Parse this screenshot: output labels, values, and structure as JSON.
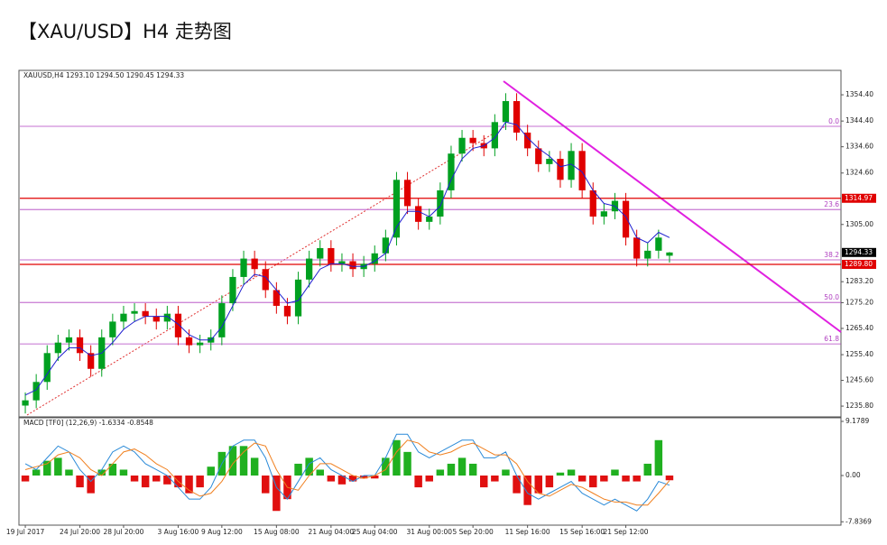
{
  "title": "【XAU/USD】H4 走势图",
  "chart_data": [
    {
      "type": "candlestick",
      "title": "XAUUSD,H4  1293.10 1294.50 1290.45 1294.33",
      "categories": [
        "19 Jul 2017",
        null,
        null,
        null,
        null,
        "24 Jul 20:00",
        null,
        null,
        null,
        "28 Jul 20:00",
        null,
        null,
        null,
        null,
        "3 Aug 16:00",
        null,
        null,
        null,
        "9 Aug 12:00",
        null,
        null,
        null,
        null,
        "15 Aug 08:00",
        null,
        null,
        null,
        null,
        "21 Aug 04:00",
        null,
        null,
        null,
        "25 Aug 04:00",
        null,
        null,
        null,
        null,
        "31 Aug 00:00",
        null,
        null,
        null,
        "5 Sep 20:00",
        null,
        null,
        null,
        null,
        "11 Sep 16:00",
        null,
        null,
        null,
        null,
        "15 Sep 16:00",
        null,
        null,
        null,
        "21 Sep 12:00",
        null,
        null,
        null,
        null
      ],
      "open": [
        1236,
        1238,
        1245,
        1256,
        1260,
        1262,
        1256,
        1250,
        1262,
        1268,
        1271,
        1272,
        1270,
        1268,
        1271,
        1262,
        1259,
        1260,
        1262,
        1275,
        1285,
        1292,
        1288,
        1280,
        1274,
        1270,
        1284,
        1292,
        1296,
        1290,
        1291,
        1288,
        1290,
        1294,
        1300,
        1322,
        1312,
        1306,
        1308,
        1318,
        1332,
        1338,
        1336,
        1334,
        1344,
        1352,
        1340,
        1334,
        1328,
        1330,
        1322,
        1333,
        1318,
        1308,
        1310,
        1314,
        1300,
        1292,
        1295,
        1293.1
      ],
      "high": [
        1241,
        1248,
        1259,
        1263,
        1265,
        1265,
        1259,
        1265,
        1271,
        1274,
        1275,
        1275,
        1273,
        1274,
        1274,
        1265,
        1263,
        1265,
        1278,
        1288,
        1295,
        1295,
        1291,
        1283,
        1277,
        1287,
        1295,
        1299,
        1299,
        1294,
        1294,
        1293,
        1297,
        1303,
        1325,
        1325,
        1315,
        1311,
        1321,
        1335,
        1341,
        1341,
        1339,
        1347,
        1355,
        1355,
        1343,
        1337,
        1333,
        1333,
        1336,
        1336,
        1321,
        1313,
        1317,
        1317,
        1303,
        1298,
        1303,
        1294.5
      ],
      "low": [
        1233,
        1235,
        1242,
        1253,
        1257,
        1253,
        1247,
        1247,
        1259,
        1265,
        1268,
        1267,
        1265,
        1265,
        1259,
        1256,
        1256,
        1257,
        1259,
        1272,
        1282,
        1285,
        1277,
        1271,
        1267,
        1267,
        1281,
        1289,
        1287,
        1287,
        1285,
        1285,
        1287,
        1291,
        1297,
        1309,
        1303,
        1303,
        1305,
        1315,
        1329,
        1333,
        1331,
        1331,
        1341,
        1337,
        1331,
        1325,
        1325,
        1319,
        1319,
        1315,
        1305,
        1305,
        1307,
        1297,
        1289,
        1289,
        1292,
        1290.45
      ],
      "close": [
        1238,
        1245,
        1256,
        1260,
        1262,
        1256,
        1250,
        1262,
        1268,
        1271,
        1272,
        1270,
        1268,
        1271,
        1262,
        1259,
        1260,
        1262,
        1275,
        1285,
        1292,
        1288,
        1280,
        1274,
        1270,
        1284,
        1292,
        1296,
        1290,
        1291,
        1288,
        1290,
        1294,
        1300,
        1322,
        1312,
        1306,
        1308,
        1318,
        1332,
        1338,
        1336,
        1334,
        1344,
        1352,
        1340,
        1334,
        1328,
        1330,
        1322,
        1333,
        1318,
        1308,
        1310,
        1314,
        1300,
        1292,
        1295,
        1300,
        1294.33
      ],
      "up_color": "#00a020",
      "down_color": "#e00000",
      "ma": {
        "color": "#2020d0",
        "values": [
          1240,
          1242,
          1248,
          1254,
          1258,
          1258,
          1255,
          1256,
          1260,
          1265,
          1268,
          1270,
          1270,
          1270,
          1267,
          1263,
          1261,
          1261,
          1266,
          1274,
          1282,
          1286,
          1285,
          1280,
          1275,
          1276,
          1282,
          1288,
          1290,
          1290,
          1289,
          1289,
          1291,
          1294,
          1304,
          1310,
          1310,
          1308,
          1312,
          1322,
          1330,
          1334,
          1335,
          1338,
          1344,
          1343,
          1338,
          1334,
          1331,
          1327,
          1328,
          1325,
          1318,
          1313,
          1312,
          1308,
          1300,
          1298,
          1302,
          1300
        ]
      },
      "ylim": [
        1231.7,
        1363.7
      ],
      "yticks": [
        {
          "value": 1354.4,
          "label": "1354.40"
        },
        {
          "value": 1344.4,
          "label": "1344.40"
        },
        {
          "value": 1334.6,
          "label": "1334.60"
        },
        {
          "value": 1324.6,
          "label": "1324.60"
        },
        {
          "value": 1305,
          "label": "1305.00"
        },
        {
          "value": 1283.2,
          "label": "1283.20"
        },
        {
          "value": 1275.2,
          "label": "1275.20"
        },
        {
          "value": 1265.4,
          "label": "1265.40"
        },
        {
          "value": 1255.4,
          "label": "1255.40"
        },
        {
          "value": 1245.6,
          "label": "1245.60"
        },
        {
          "value": 1235.8,
          "label": "1235.80"
        }
      ],
      "price_tags": [
        {
          "value": 1314.97,
          "color": "#e00000",
          "line": true
        },
        {
          "value": 1294.33,
          "color": "#000000",
          "line": false
        },
        {
          "value": 1289.8,
          "label": "1289.80",
          "color": "#e00000",
          "line": true
        }
      ],
      "fib_color": "#b040c0",
      "fib_levels": [
        {
          "value": 1342.4,
          "label": "0.0"
        },
        {
          "value": 1310.7,
          "label": "23.6"
        },
        {
          "value": 1291.5,
          "label": "38.2"
        },
        {
          "value": 1275.3,
          "label": "50.0"
        },
        {
          "value": 1259.5,
          "label": "61.8"
        }
      ]
    },
    {
      "type": "macd",
      "title": "MACD [TF0] (12,26,9) -1.6334 -0.8548",
      "histogram": {
        "up_color": "#20b020",
        "down_color": "#e01010",
        "values": [
          -1,
          1,
          2.5,
          3,
          1,
          -2,
          -3,
          1,
          2,
          1,
          -1,
          -2,
          -1,
          -1.5,
          -2,
          -3,
          -2,
          1.5,
          4,
          5,
          5,
          3,
          -3,
          -6,
          -4,
          2,
          3,
          1,
          -1,
          -1.5,
          -1,
          -0.5,
          -0.5,
          3,
          6,
          4,
          -2,
          -1,
          1,
          2,
          3,
          2,
          -2,
          -1,
          1,
          -3,
          -5,
          -3,
          -2,
          0.5,
          1,
          -1,
          -2,
          -1,
          1,
          -1,
          -1,
          2,
          6,
          -0.8
        ]
      },
      "series": [
        {
          "color": "#2a8ad8",
          "values": [
            2,
            1,
            3,
            5,
            4,
            1,
            -1,
            1,
            4,
            5,
            4,
            2,
            1,
            0,
            -2,
            -4,
            -4,
            -2,
            2,
            5,
            6,
            6,
            3,
            -2,
            -4,
            -1,
            2,
            3,
            1,
            0,
            -1,
            0,
            0,
            3,
            7,
            7,
            4,
            3,
            4,
            5,
            6,
            6,
            3,
            3,
            4,
            0,
            -3,
            -4,
            -3,
            -2,
            -1,
            -3,
            -4,
            -5,
            -4,
            -5,
            -6,
            -4,
            -1,
            -1.6334
          ]
        },
        {
          "color": "#f08020",
          "values": [
            1,
            1.5,
            2,
            3.5,
            4,
            3,
            1,
            0,
            2,
            4,
            4.5,
            3.5,
            2,
            1,
            -1,
            -2.5,
            -3.5,
            -3,
            -1,
            2,
            4,
            5.5,
            5,
            1,
            -2,
            -2.5,
            0,
            2,
            2,
            1,
            0,
            -0.5,
            0,
            1,
            4,
            6,
            5.5,
            4,
            3.5,
            4,
            5,
            5.5,
            4.5,
            3.5,
            3.5,
            2,
            -1,
            -3,
            -3.5,
            -2.5,
            -1.5,
            -2,
            -3,
            -4,
            -4.5,
            -4.5,
            -5,
            -5,
            -3,
            -0.8548
          ]
        }
      ],
      "ylim": [
        -8.41,
        9.79
      ],
      "yticks": [
        9.1789,
        {
          "value": 0,
          "label": "0.00"
        },
        -7.8369
      ]
    }
  ]
}
